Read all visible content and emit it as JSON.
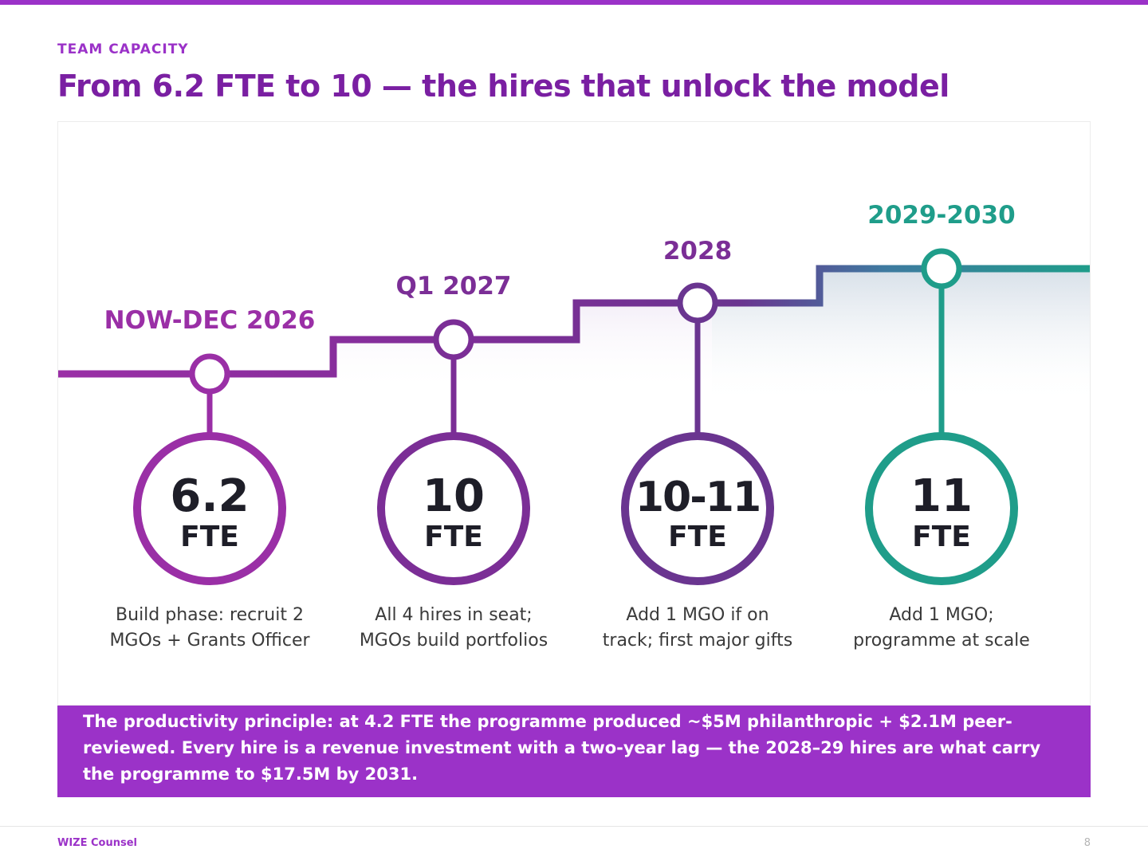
{
  "slide": {
    "eyebrow": "TEAM CAPACITY",
    "title": "From 6.2 FTE to 10 — the hires that unlock the model",
    "callout": "The productivity principle: at 4.2 FTE the programme produced ~$5M philanthropic + $2.1M peer-reviewed. Every hire is a revenue investment with a two-year lag — the 2028–29 hires are what carry the programme to $17.5M by 2031.",
    "footer_brand": "WIZE Counsel",
    "page_number": "8"
  },
  "timeline": {
    "milestones": [
      {
        "period": "NOW-DEC 2026",
        "fte_value": "6.2",
        "fte_unit": "FTE",
        "description_line1": "Build phase: recruit 2",
        "description_line2": "MGOs + Grants Officer",
        "color": "#9a2fa6"
      },
      {
        "period": "Q1 2027",
        "fte_value": "10",
        "fte_unit": "FTE",
        "description_line1": "All 4 hires in seat;",
        "description_line2": "MGOs build portfolios",
        "color": "#7b2e96"
      },
      {
        "period": "2028",
        "fte_value": "10-11",
        "fte_unit": "FTE",
        "description_line1": "Add 1 MGO if on",
        "description_line2": "track; first major gifts",
        "color": "#6a3590"
      },
      {
        "period": "2029-2030",
        "fte_value": "11",
        "fte_unit": "FTE",
        "description_line1": "Add 1 MGO;",
        "description_line2": "programme at scale",
        "color": "#1f9d8a"
      }
    ]
  },
  "colors": {
    "accent": "#9b32c8",
    "title": "#7a1fa2",
    "text_dark": "#1e1e28",
    "text_body": "#3a3a3a",
    "teal": "#1f9d8a"
  }
}
